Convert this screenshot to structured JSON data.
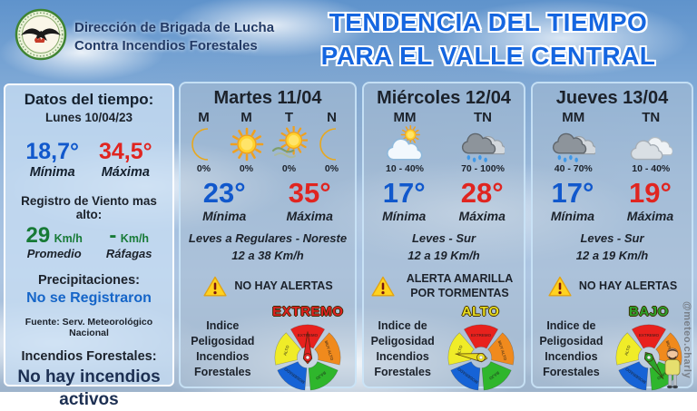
{
  "header": {
    "org_line1": "Dirección de Brigada de Lucha",
    "org_line2": "Contra Incendios Forestales",
    "title_line1": "TENDENCIA DEL TIEMPO",
    "title_line2": "PARA EL VALLE CENTRAL"
  },
  "today": {
    "heading": "Datos del tiempo:",
    "date": "Lunes 10/04/23",
    "min_temp": "18,7°",
    "min_label": "Mínima",
    "max_temp": "34,5°",
    "max_label": "Máxima",
    "wind_heading": "Registro de Viento mas alto:",
    "wind_avg_value": "29",
    "wind_avg_unit": "Km/h",
    "wind_avg_label": "Promedio",
    "wind_gust_value": "-",
    "wind_gust_unit": "Km/h",
    "wind_gust_label": "Ráfagas",
    "precip_heading": "Precipitaciones:",
    "precip_value": "No se Registraron",
    "source": "Fuente: Serv. Meteorológico Nacional",
    "fires_heading": "Incendios Forestales:",
    "fires_value": "No hay incendios activos"
  },
  "gauge": {
    "segments": [
      {
        "label": "EXTREMO",
        "color": "#e8211d"
      },
      {
        "label": "MUY ALTO",
        "color": "#f08a1d"
      },
      {
        "label": "BAJO",
        "color": "#2fb62c"
      },
      {
        "label": "MODERADO",
        "color": "#1663d6"
      },
      {
        "label": "ALTO",
        "color": "#f0ec28"
      }
    ]
  },
  "cards": [
    {
      "title": "Martes 11/04",
      "periods": [
        {
          "label": "M",
          "icon": "moon",
          "pct": "0%"
        },
        {
          "label": "M",
          "icon": "sun",
          "pct": "0%"
        },
        {
          "label": "T",
          "icon": "sun-wind",
          "pct": "0%"
        },
        {
          "label": "N",
          "icon": "moon",
          "pct": "0%"
        }
      ],
      "min_temp": "23°",
      "min_label": "Mínima",
      "max_temp": "35°",
      "max_label": "Máxima",
      "wind_line1": "Leves a Regulares - Noreste",
      "wind_line2": "12 a 38 Km/h",
      "alert": "NO HAY ALERTAS",
      "index_label": "Indice Peligosidad Incendios Forestales",
      "risk_level": "EXTREMO",
      "risk_color": "#e02020",
      "needle_angle": 0
    },
    {
      "title": "Miércoles 12/04",
      "periods": [
        {
          "label": "MM",
          "icon": "sun-cloud",
          "pct": "10 - 40%"
        },
        {
          "label": "TN",
          "icon": "rain-clouds",
          "pct": "70 - 100%"
        }
      ],
      "min_temp": "17°",
      "min_label": "Mínima",
      "max_temp": "28°",
      "max_label": "Máxima",
      "wind_line1": "Leves - Sur",
      "wind_line2": "12 a 19 Km/h",
      "alert": "ALERTA AMARILLA POR TORMENTAS",
      "index_label": "Indice de Peligosidad Incendios Forestales",
      "risk_level": "ALTO",
      "risk_color": "#e8dc1e",
      "needle_angle": 278
    },
    {
      "title": "Jueves 13/04",
      "periods": [
        {
          "label": "MM",
          "icon": "rain-clouds",
          "pct": "40 - 70%"
        },
        {
          "label": "TN",
          "icon": "clouds",
          "pct": "10 - 40%"
        }
      ],
      "min_temp": "17°",
      "min_label": "Mínima",
      "max_temp": "19°",
      "max_label": "Máxima",
      "wind_line1": "Leves - Sur",
      "wind_line2": "12 a 19 Km/h",
      "alert": "NO HAY ALERTAS",
      "index_label": "Indice de Peligosidad Incendios Forestales",
      "risk_level": "BAJO",
      "risk_color": "#2da32a",
      "needle_angle": 146
    }
  ],
  "signature": "@meteo.charly"
}
